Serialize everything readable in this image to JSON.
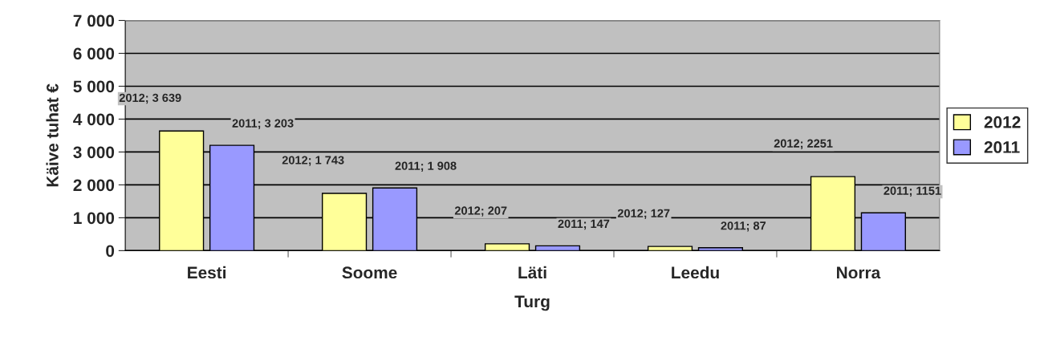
{
  "chart_data": {
    "type": "bar",
    "xlabel": "Turg",
    "ylabel": "Käive tuhat €",
    "categories": [
      "Eesti",
      "Soome",
      "Läti",
      "Leedu",
      "Norra"
    ],
    "series": [
      {
        "name": "2012",
        "color": "#ffff99",
        "values": [
          3639,
          1743,
          207,
          127,
          2251
        ],
        "value_labels": [
          "2012; 3 639",
          "2012; 1 743",
          "2012; 207",
          "2012; 127",
          "2012; 2251"
        ]
      },
      {
        "name": "2011",
        "color": "#9999ff",
        "values": [
          3203,
          1908,
          147,
          87,
          1151
        ],
        "value_labels": [
          "2011; 3 203",
          "2011; 1 908",
          "2011; 147",
          "2011; 87",
          "2011; 1151"
        ]
      }
    ],
    "ylim": [
      0,
      7000
    ],
    "yticks": [
      {
        "value": 0,
        "label": "0"
      },
      {
        "value": 1000,
        "label": "1 000"
      },
      {
        "value": 2000,
        "label": "2 000"
      },
      {
        "value": 3000,
        "label": "3 000"
      },
      {
        "value": 4000,
        "label": "4 000"
      },
      {
        "value": 5000,
        "label": "5 000"
      },
      {
        "value": 6000,
        "label": "6 000"
      },
      {
        "value": 7000,
        "label": "7 000"
      }
    ],
    "grid": "y",
    "legend": "right"
  }
}
